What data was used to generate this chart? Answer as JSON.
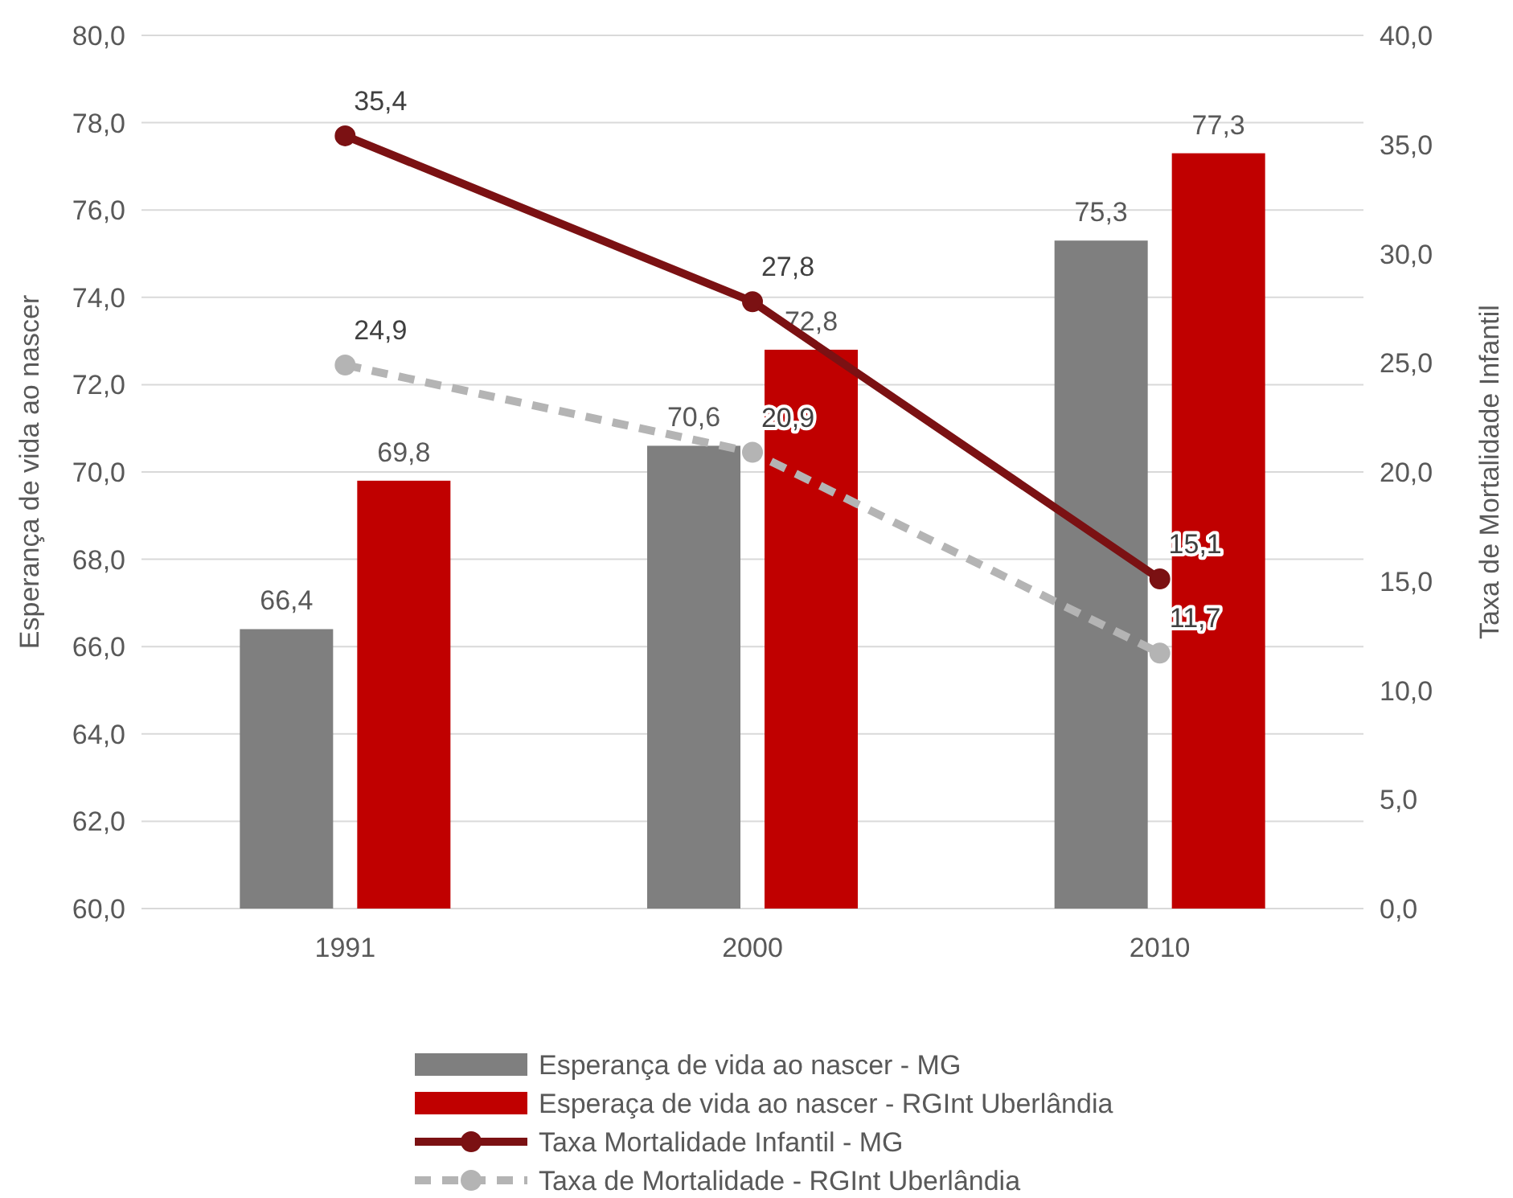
{
  "chart_data": {
    "type": "bar",
    "ylabel": "Esperança de vida ao nascer",
    "y2label": "Taxa de Mortalidade Infantil",
    "categories": [
      "1991",
      "2000",
      "2010"
    ],
    "series": [
      {
        "name": "Esperança de vida ao nascer - MG",
        "color": "#7f7f7f",
        "values": [
          66.4,
          70.6,
          75.3
        ],
        "value_labels": [
          "66,4",
          "70,6",
          "75,3"
        ]
      },
      {
        "name": "Esperaça de vida ao nascer - RGInt Uberlândia",
        "color": "#c00000",
        "values": [
          69.8,
          72.8,
          77.3
        ],
        "value_labels": [
          "69,8",
          "72,8",
          "77,3"
        ]
      },
      {
        "name": "Taxa Mortalidade Infantil - MG",
        "type": "line",
        "axis": "y2",
        "color": "#7b1113",
        "values": [
          35.4,
          27.8,
          15.1
        ],
        "value_labels": [
          "35,4",
          "27,8",
          "15,1"
        ],
        "line_style": "solid"
      },
      {
        "name": "Taxa de Mortalidade - RGInt Uberlândia",
        "type": "line",
        "axis": "y2",
        "color": "#b4b4b4",
        "values": [
          24.9,
          20.9,
          11.7
        ],
        "value_labels": [
          "24,9",
          "20,9",
          "11,7"
        ],
        "line_style": "dashed"
      }
    ],
    "ylim": [
      60,
      80
    ],
    "yticks": [
      {
        "value": 60,
        "label": "60,0"
      },
      {
        "value": 62,
        "label": "62,0"
      },
      {
        "value": 64,
        "label": "64,0"
      },
      {
        "value": 66,
        "label": "66,0"
      },
      {
        "value": 68,
        "label": "68,0"
      },
      {
        "value": 70,
        "label": "70,0"
      },
      {
        "value": 72,
        "label": "72,0"
      },
      {
        "value": 74,
        "label": "74,0"
      },
      {
        "value": 76,
        "label": "76,0"
      },
      {
        "value": 78,
        "label": "78,0"
      },
      {
        "value": 80,
        "label": "80,0"
      }
    ],
    "y2lim": [
      0,
      40
    ],
    "y2ticks": [
      {
        "value": 0,
        "label": "0,0"
      },
      {
        "value": 5,
        "label": "5,0"
      },
      {
        "value": 10,
        "label": "10,0"
      },
      {
        "value": 15,
        "label": "15,0"
      },
      {
        "value": 20,
        "label": "20,0"
      },
      {
        "value": 25,
        "label": "25,0"
      },
      {
        "value": 30,
        "label": "30,0"
      },
      {
        "value": 35,
        "label": "35,0"
      },
      {
        "value": 40,
        "label": "40,0"
      }
    ],
    "grid": "y",
    "legend": "bottom",
    "marker": "circle"
  }
}
